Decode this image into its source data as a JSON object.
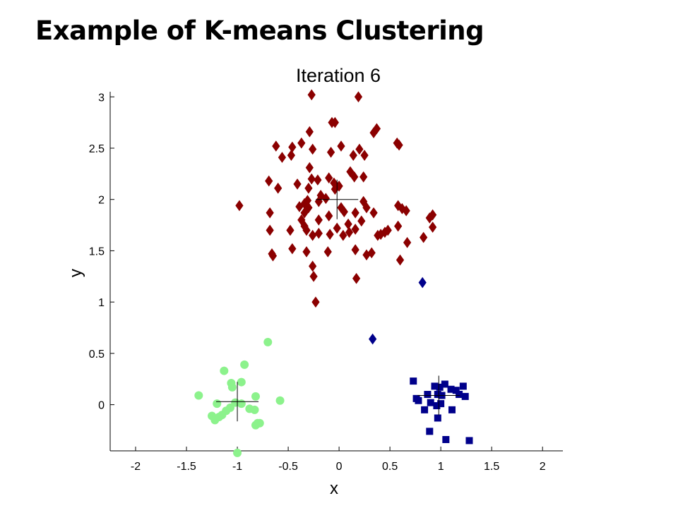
{
  "slide": {
    "title": "Example of K-means Clustering"
  },
  "chart_data": {
    "type": "scatter",
    "title": "Iteration 6",
    "xlabel": "x",
    "ylabel": "y",
    "xlim": [
      -2.25,
      2.2
    ],
    "ylim": [
      -0.45,
      3.05
    ],
    "xticks": [
      -2,
      -1.5,
      -1,
      -0.5,
      0,
      0.5,
      1,
      1.5,
      2
    ],
    "xtick_labels": [
      "-2",
      "-1.5",
      "-1",
      "-0.5",
      "0",
      "0.5",
      "1",
      "1.5",
      "2"
    ],
    "yticks": [
      0,
      0.5,
      1,
      1.5,
      2,
      2.5,
      3
    ],
    "ytick_labels": [
      "0",
      "0.5",
      "1",
      "1.5",
      "2",
      "2.5",
      "3"
    ],
    "grid": false,
    "series": [
      {
        "marker": "diamond",
        "color": "#8b0000",
        "points": [
          [
            -0.27,
            3.02
          ],
          [
            0.19,
            3.0
          ],
          [
            -0.07,
            2.75
          ],
          [
            -0.04,
            2.75
          ],
          [
            0.37,
            2.69
          ],
          [
            0.34,
            2.65
          ],
          [
            -0.29,
            2.66
          ],
          [
            -0.37,
            2.55
          ],
          [
            0.57,
            2.55
          ],
          [
            0.59,
            2.53
          ],
          [
            -0.62,
            2.52
          ],
          [
            -0.46,
            2.51
          ],
          [
            0.02,
            2.52
          ],
          [
            0.2,
            2.49
          ],
          [
            0.25,
            2.43
          ],
          [
            -0.26,
            2.49
          ],
          [
            -0.08,
            2.46
          ],
          [
            -0.47,
            2.43
          ],
          [
            -0.56,
            2.41
          ],
          [
            0.14,
            2.43
          ],
          [
            -0.29,
            2.31
          ],
          [
            0.11,
            2.27
          ],
          [
            0.15,
            2.22
          ],
          [
            -0.1,
            2.21
          ],
          [
            -0.21,
            2.19
          ],
          [
            -0.27,
            2.2
          ],
          [
            0.24,
            2.22
          ],
          [
            -0.69,
            2.18
          ],
          [
            -0.41,
            2.15
          ],
          [
            -0.04,
            2.1
          ],
          [
            0.0,
            2.13
          ],
          [
            -0.6,
            2.11
          ],
          [
            -0.3,
            2.11
          ],
          [
            -0.05,
            2.16
          ],
          [
            -0.18,
            2.04
          ],
          [
            -0.31,
            1.99
          ],
          [
            -0.34,
            1.96
          ],
          [
            -0.13,
            2.01
          ],
          [
            -0.2,
            1.98
          ],
          [
            0.24,
            1.98
          ],
          [
            -0.98,
            1.94
          ],
          [
            -0.39,
            1.93
          ],
          [
            -0.3,
            1.92
          ],
          [
            0.02,
            1.92
          ],
          [
            0.05,
            1.88
          ],
          [
            0.27,
            1.92
          ],
          [
            0.58,
            1.94
          ],
          [
            0.62,
            1.91
          ],
          [
            0.66,
            1.89
          ],
          [
            -0.68,
            1.87
          ],
          [
            -0.34,
            1.87
          ],
          [
            -0.1,
            1.84
          ],
          [
            0.16,
            1.87
          ],
          [
            0.34,
            1.87
          ],
          [
            0.92,
            1.85
          ],
          [
            0.89,
            1.82
          ],
          [
            -0.37,
            1.8
          ],
          [
            -0.2,
            1.8
          ],
          [
            0.22,
            1.79
          ],
          [
            0.09,
            1.76
          ],
          [
            -0.48,
            1.7
          ],
          [
            -0.68,
            1.7
          ],
          [
            -0.34,
            1.74
          ],
          [
            -0.32,
            1.7
          ],
          [
            -0.02,
            1.72
          ],
          [
            0.16,
            1.71
          ],
          [
            0.1,
            1.68
          ],
          [
            0.48,
            1.7
          ],
          [
            0.45,
            1.68
          ],
          [
            0.41,
            1.66
          ],
          [
            0.58,
            1.74
          ],
          [
            0.92,
            1.73
          ],
          [
            -0.2,
            1.67
          ],
          [
            0.04,
            1.65
          ],
          [
            -0.26,
            1.65
          ],
          [
            -0.09,
            1.66
          ],
          [
            0.38,
            1.65
          ],
          [
            0.83,
            1.63
          ],
          [
            0.67,
            1.58
          ],
          [
            -0.46,
            1.52
          ],
          [
            -0.66,
            1.47
          ],
          [
            -0.65,
            1.45
          ],
          [
            -0.32,
            1.49
          ],
          [
            -0.11,
            1.49
          ],
          [
            0.16,
            1.51
          ],
          [
            0.27,
            1.46
          ],
          [
            0.32,
            1.48
          ],
          [
            0.6,
            1.41
          ],
          [
            -0.26,
            1.35
          ],
          [
            -0.25,
            1.25
          ],
          [
            0.17,
            1.23
          ],
          [
            -0.23,
            1.0
          ]
        ]
      },
      {
        "marker": "diamond",
        "color": "#00008b",
        "points": [
          [
            0.82,
            1.19
          ],
          [
            0.33,
            0.64
          ]
        ]
      },
      {
        "marker": "square",
        "color": "#00008b",
        "points": [
          [
            0.73,
            0.23
          ],
          [
            0.94,
            0.18
          ],
          [
            0.99,
            0.17
          ],
          [
            1.04,
            0.2
          ],
          [
            1.1,
            0.15
          ],
          [
            1.15,
            0.14
          ],
          [
            1.22,
            0.18
          ],
          [
            0.87,
            0.1
          ],
          [
            0.97,
            0.1
          ],
          [
            1.01,
            0.09
          ],
          [
            1.18,
            0.1
          ],
          [
            1.24,
            0.08
          ],
          [
            0.76,
            0.06
          ],
          [
            0.78,
            0.04
          ],
          [
            0.9,
            0.02
          ],
          [
            0.96,
            -0.01
          ],
          [
            1.0,
            0.01
          ],
          [
            0.84,
            -0.05
          ],
          [
            1.11,
            -0.05
          ],
          [
            0.97,
            -0.13
          ],
          [
            0.89,
            -0.26
          ],
          [
            1.05,
            -0.34
          ],
          [
            1.28,
            -0.35
          ]
        ]
      },
      {
        "marker": "circle",
        "color": "#8cf28c",
        "points": [
          [
            -0.7,
            0.61
          ],
          [
            -0.93,
            0.39
          ],
          [
            -1.13,
            0.33
          ],
          [
            -1.06,
            0.21
          ],
          [
            -0.96,
            0.22
          ],
          [
            -1.05,
            0.17
          ],
          [
            -1.38,
            0.09
          ],
          [
            -0.82,
            0.08
          ],
          [
            -0.58,
            0.04
          ],
          [
            -1.2,
            0.01
          ],
          [
            -1.02,
            0.02
          ],
          [
            -0.96,
            0.01
          ],
          [
            -1.07,
            -0.03
          ],
          [
            -1.11,
            -0.06
          ],
          [
            -0.88,
            -0.04
          ],
          [
            -0.83,
            -0.05
          ],
          [
            -1.15,
            -0.1
          ],
          [
            -1.18,
            -0.12
          ],
          [
            -1.25,
            -0.11
          ],
          [
            -1.22,
            -0.15
          ],
          [
            -0.78,
            -0.18
          ],
          [
            -0.8,
            -0.18
          ],
          [
            -0.82,
            -0.2
          ],
          [
            -1.0,
            -0.47
          ]
        ]
      }
    ],
    "centroids": [
      [
        -0.02,
        2.0
      ],
      [
        0.98,
        0.09
      ],
      [
        -1.0,
        0.03
      ]
    ],
    "centroid_marker": "plus",
    "centroid_color": "#000000"
  }
}
